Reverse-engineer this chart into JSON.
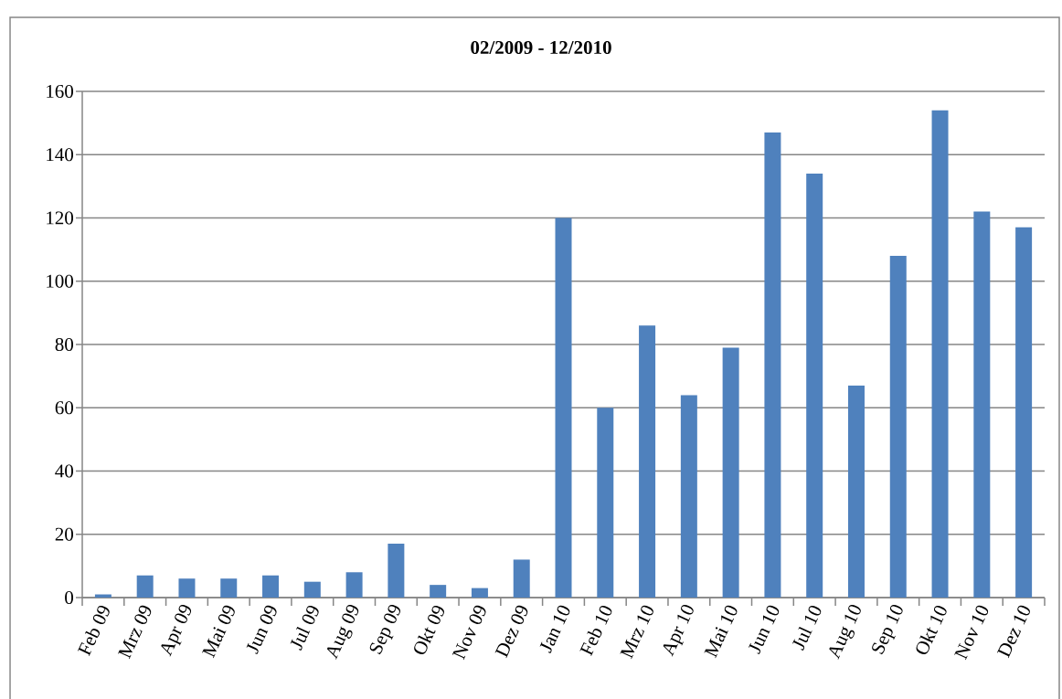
{
  "chart_data": {
    "type": "bar",
    "title": "02/2009 - 12/2010",
    "categories": [
      "Feb 09",
      "Mrz 09",
      "Apr 09",
      "Mai 09",
      "Jun 09",
      "Jul 09",
      "Aug 09",
      "Sep 09",
      "Okt 09",
      "Nov 09",
      "Dez 09",
      "Jan 10",
      "Feb 10",
      "Mrz 10",
      "Apr 10",
      "Mai 10",
      "Jun 10",
      "Jul 10",
      "Aug 10",
      "Sep 10",
      "Okt 10",
      "Nov 10",
      "Dez 10"
    ],
    "values": [
      1,
      7,
      6,
      6,
      7,
      5,
      8,
      17,
      4,
      3,
      12,
      120,
      60,
      86,
      64,
      79,
      147,
      134,
      67,
      108,
      154,
      122,
      117
    ],
    "color": "#4f81bd",
    "ylim": [
      0,
      160
    ],
    "yticks": [
      0,
      20,
      40,
      60,
      80,
      100,
      120,
      140,
      160
    ],
    "grid": "y"
  }
}
